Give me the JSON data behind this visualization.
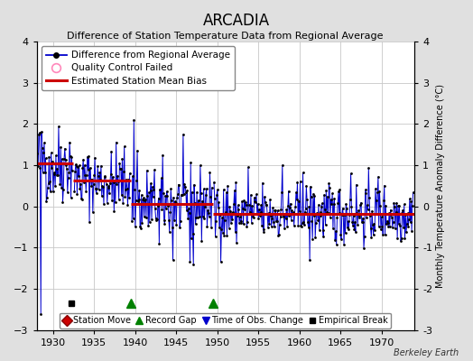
{
  "title": "ARCADIA",
  "subtitle": "Difference of Station Temperature Data from Regional Average",
  "ylabel_right": "Monthly Temperature Anomaly Difference (°C)",
  "xlim": [
    1928.0,
    1974.0
  ],
  "ylim": [
    -3.0,
    4.0
  ],
  "yticks": [
    -3,
    -2,
    -1,
    0,
    1,
    2,
    3,
    4
  ],
  "xticks": [
    1930,
    1935,
    1940,
    1945,
    1950,
    1955,
    1960,
    1965,
    1970
  ],
  "background_color": "#e0e0e0",
  "plot_bg_color": "#ffffff",
  "grid_color": "#c8c8c8",
  "segments": [
    {
      "start": 1928.0,
      "end": 1932.5,
      "bias": 1.05
    },
    {
      "start": 1932.5,
      "end": 1939.5,
      "bias": 0.62
    },
    {
      "start": 1939.5,
      "end": 1949.5,
      "bias": 0.05
    },
    {
      "start": 1949.5,
      "end": 1974.0,
      "bias": -0.18
    }
  ],
  "empirical_breaks": [
    1932.2
  ],
  "record_gaps": [
    1939.5,
    1949.5
  ],
  "obs_changes": [],
  "station_moves": [],
  "marker_y": -2.35,
  "line_color": "#0000cc",
  "dot_color": "#000000",
  "red_color": "#cc0000",
  "annotation": "Berkeley Earth",
  "seed": 42
}
